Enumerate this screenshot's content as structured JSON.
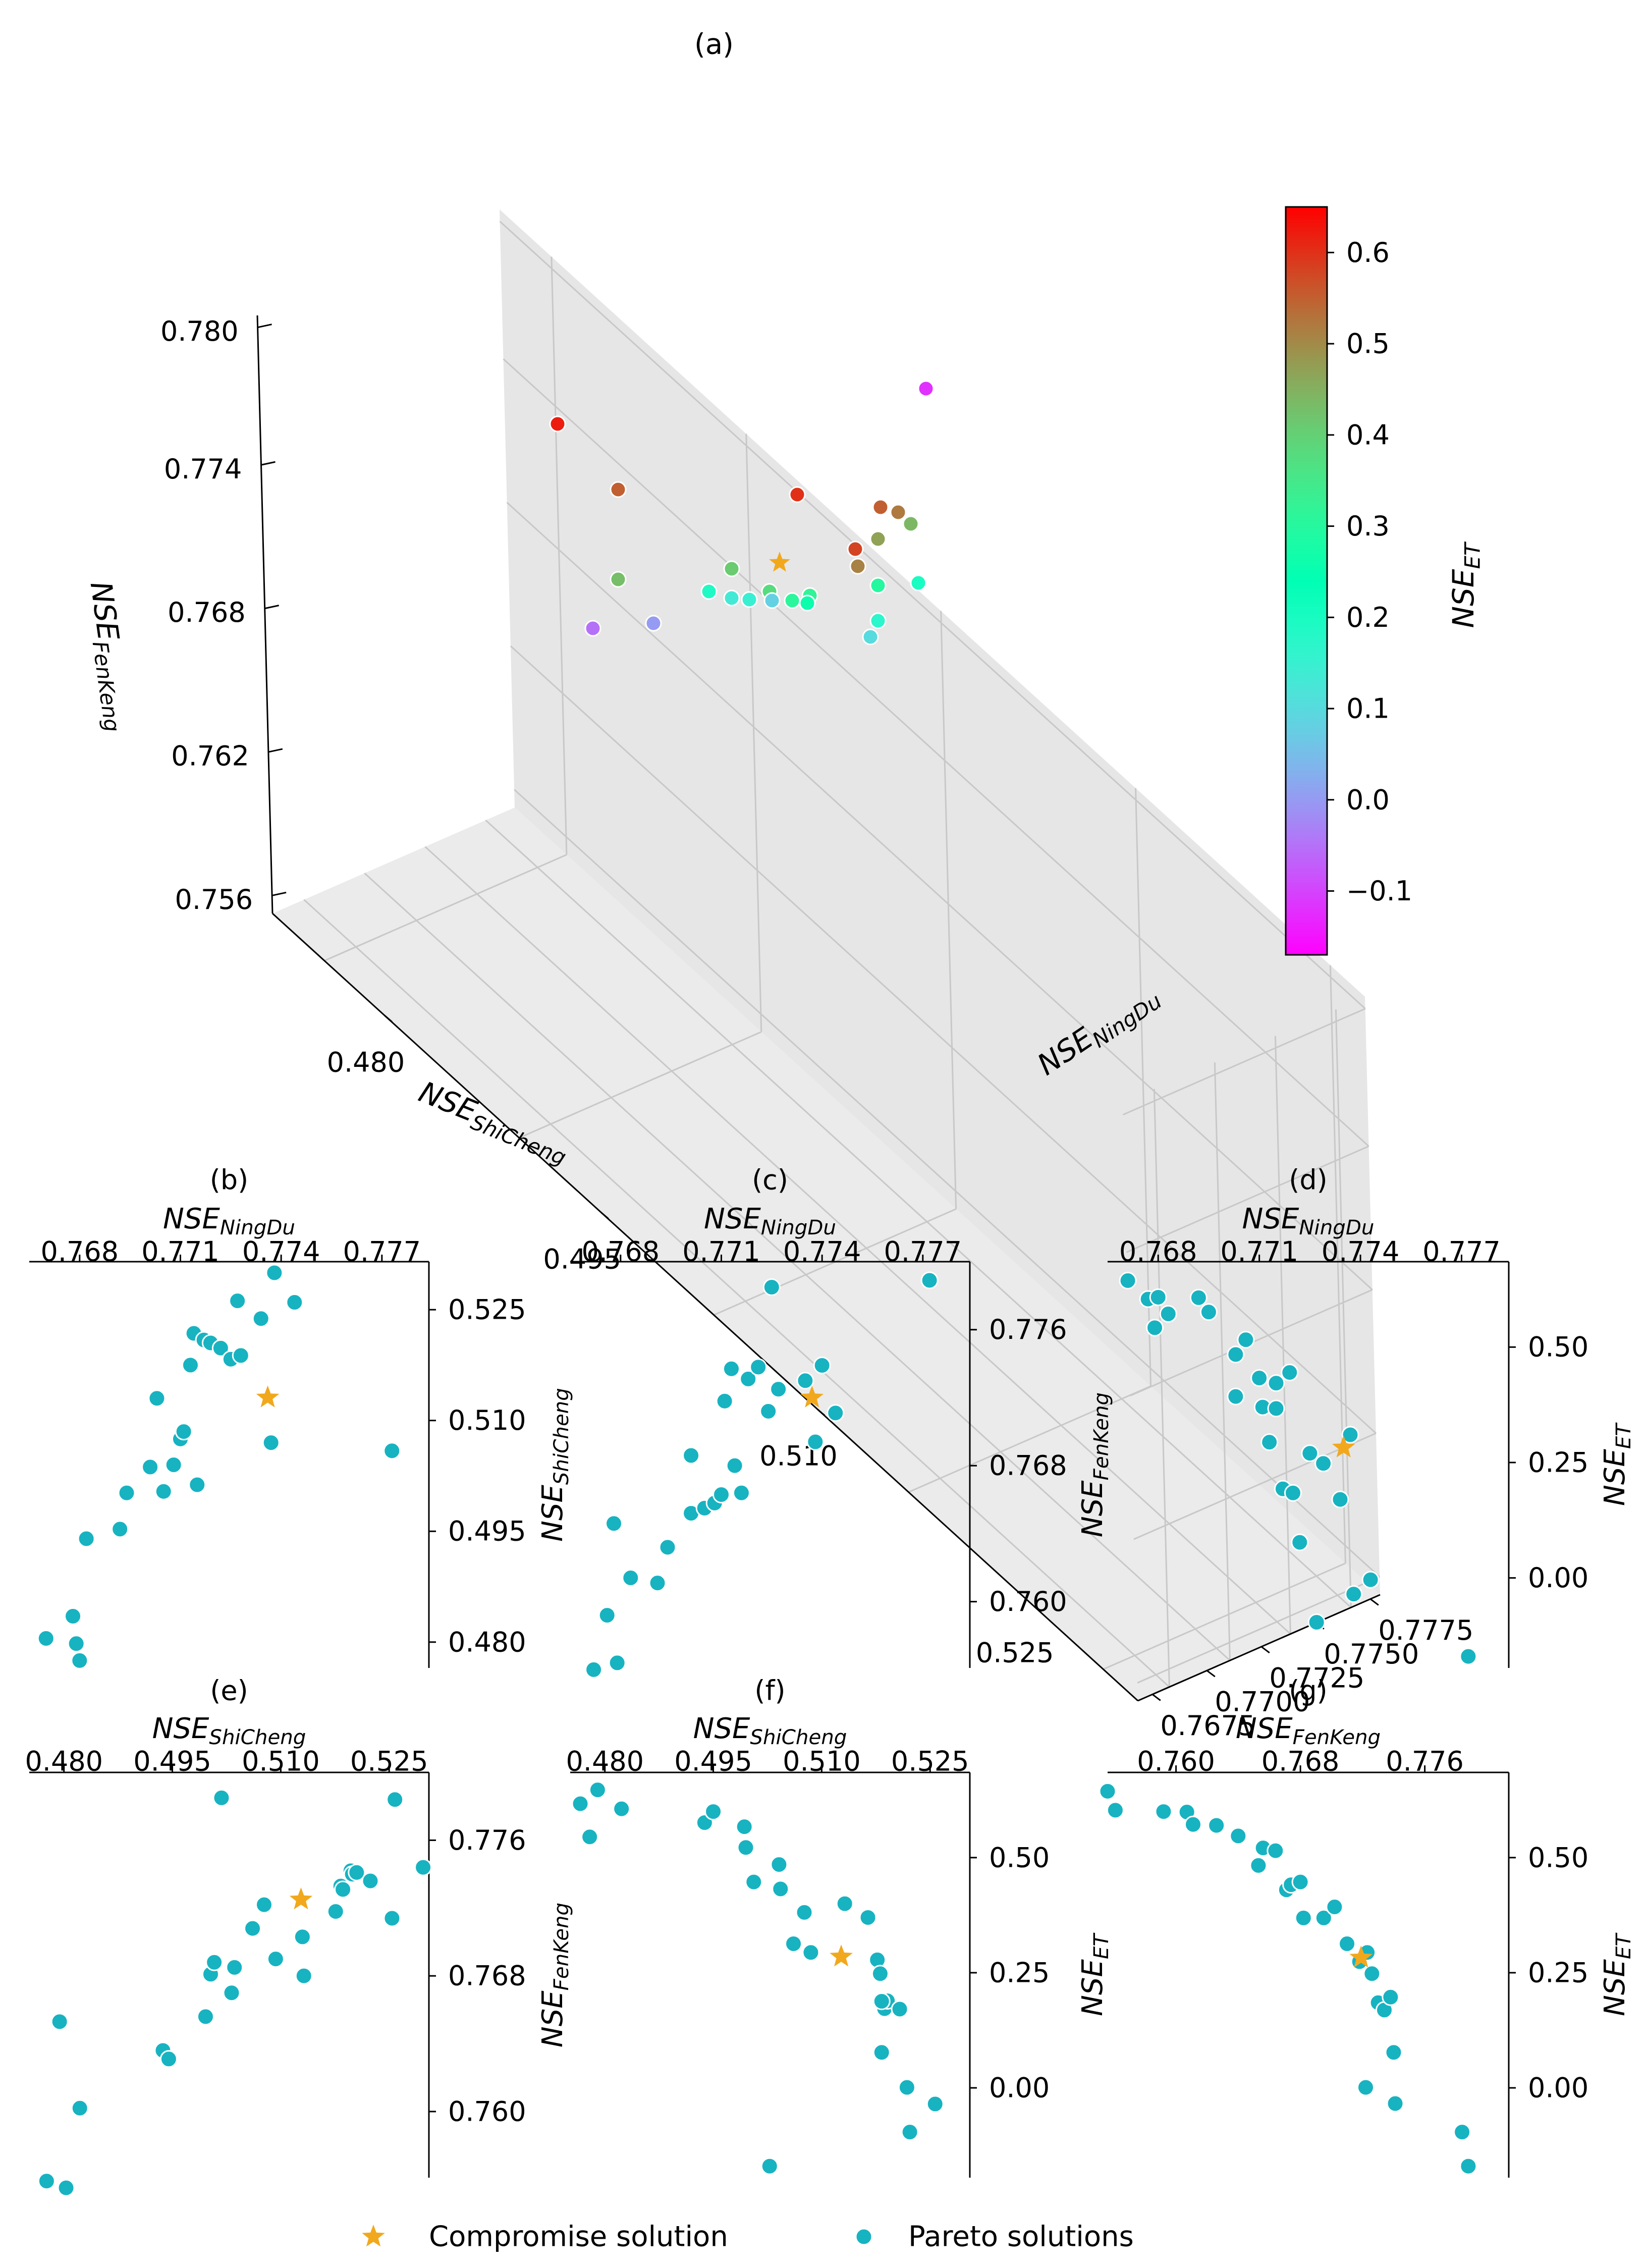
{
  "chart_data": [
    {
      "type": "scatter-3d",
      "title": "(a)",
      "xlabel": "NSE",
      "xlabel_sub": "ShiCheng",
      "ylabel": "NSE",
      "ylabel_sub": "NingDu",
      "zlabel": "NSE",
      "zlabel_sub": "FenKeng",
      "xticks": [
        "0.480",
        "0.495",
        "0.510",
        "0.525"
      ],
      "yticks": [
        "0.7675",
        "0.7700",
        "0.7725",
        "0.7750",
        "0.7775"
      ],
      "zticks": [
        "0.756",
        "0.762",
        "0.768",
        "0.774",
        "0.780"
      ],
      "colorbar": {
        "label": "NSE",
        "label_sub": "ET",
        "range": [
          -0.17,
          0.65
        ],
        "ticks": [
          "0.6",
          "0.5",
          "0.4",
          "0.3",
          "0.2",
          "0.1",
          "0.0",
          "−0.1"
        ],
        "tick_values": [
          0.6,
          0.5,
          0.4,
          0.3,
          0.2,
          0.1,
          0.0,
          -0.1
        ]
      },
      "compromise": {
        "c": 0.28
      },
      "pareto_c": [
        -0.12,
        0.62,
        0.55,
        0.6,
        0.55,
        0.52,
        0.44,
        0.58,
        0.43,
        0.47,
        0.41,
        0.51,
        0.38,
        0.3,
        0.32,
        0.17,
        0.19,
        0.13,
        0.15,
        0.08,
        0.2,
        0.31,
        0.26,
        0.0,
        -0.05,
        0.1
      ]
    },
    {
      "type": "scatter",
      "title": "(b)",
      "xlabel": "NSE",
      "xlabel_sub": "NingDu",
      "ylabel": "NSE",
      "ylabel_sub": "ShiCheng",
      "xlim": [
        0.7665,
        0.7784
      ],
      "ylim": [
        0.4765,
        0.5315
      ],
      "xticks": [
        0.768,
        0.771,
        0.774,
        0.777
      ],
      "xtick_labels": [
        "0.768",
        "0.771",
        "0.774",
        "0.777"
      ],
      "yticks": [
        0.48,
        0.495,
        0.51,
        0.525
      ],
      "ytick_labels": [
        "0.480",
        "0.495",
        "0.510",
        "0.525"
      ],
      "compromise": [
        0.7736,
        0.5131
      ],
      "pareto": [
        [
          0.767,
          0.4805
        ],
        [
          0.7678,
          0.4835
        ],
        [
          0.7679,
          0.4798
        ],
        [
          0.768,
          0.4775
        ],
        [
          0.7682,
          0.494
        ],
        [
          0.7692,
          0.4953
        ],
        [
          0.7694,
          0.5002
        ],
        [
          0.7701,
          0.5037
        ],
        [
          0.7703,
          0.513
        ],
        [
          0.7705,
          0.5004
        ],
        [
          0.7708,
          0.504
        ],
        [
          0.771,
          0.5075
        ],
        [
          0.7711,
          0.5085
        ],
        [
          0.7713,
          0.5175
        ],
        [
          0.7714,
          0.5218
        ],
        [
          0.7715,
          0.5013
        ],
        [
          0.7717,
          0.5209
        ],
        [
          0.7719,
          0.5205
        ],
        [
          0.7722,
          0.5198
        ],
        [
          0.7725,
          0.5183
        ],
        [
          0.7727,
          0.5262
        ],
        [
          0.7728,
          0.5188
        ],
        [
          0.7734,
          0.5238
        ],
        [
          0.7737,
          0.507
        ],
        [
          0.7738,
          0.53
        ],
        [
          0.7744,
          0.526
        ],
        [
          0.7773,
          0.5059
        ]
      ]
    },
    {
      "type": "scatter",
      "title": "(c)",
      "xlabel": "NSE",
      "xlabel_sub": "NingDu",
      "ylabel": "NSE",
      "ylabel_sub": "FenKeng",
      "xlim": [
        0.7665,
        0.7784
      ],
      "ylim": [
        0.7561,
        0.78
      ],
      "xticks": [
        0.768,
        0.771,
        0.774,
        0.777
      ],
      "xtick_labels": [
        "0.768",
        "0.771",
        "0.774",
        "0.777"
      ],
      "yticks": [
        0.76,
        0.768,
        0.776
      ],
      "ytick_labels": [
        "0.760",
        "0.768",
        "0.776"
      ],
      "compromise": [
        0.7737,
        0.772
      ],
      "pareto": [
        [
          0.7672,
          0.756
        ],
        [
          0.7676,
          0.7592
        ],
        [
          0.7678,
          0.7646
        ],
        [
          0.7679,
          0.7564
        ],
        [
          0.7683,
          0.7614
        ],
        [
          0.7691,
          0.7611
        ],
        [
          0.7694,
          0.7632
        ],
        [
          0.7701,
          0.7652
        ],
        [
          0.7701,
          0.7686
        ],
        [
          0.7705,
          0.7655
        ],
        [
          0.7708,
          0.7658
        ],
        [
          0.771,
          0.7663
        ],
        [
          0.7711,
          0.7718
        ],
        [
          0.7713,
          0.7737
        ],
        [
          0.7714,
          0.768
        ],
        [
          0.7716,
          0.7664
        ],
        [
          0.7718,
          0.7731
        ],
        [
          0.7721,
          0.7738
        ],
        [
          0.7724,
          0.7712
        ],
        [
          0.7725,
          0.7785
        ],
        [
          0.7727,
          0.7725
        ],
        [
          0.7735,
          0.773
        ],
        [
          0.7738,
          0.7694
        ],
        [
          0.774,
          0.7739
        ],
        [
          0.7744,
          0.7711
        ],
        [
          0.7772,
          0.7789
        ]
      ]
    },
    {
      "type": "scatter",
      "title": "(d)",
      "xlabel": "NSE",
      "xlabel_sub": "NingDu",
      "ylabel": "NSE",
      "ylabel_sub": "ET",
      "xlim": [
        0.7665,
        0.7784
      ],
      "ylim": [
        -0.195,
        0.685
      ],
      "xticks": [
        0.768,
        0.771,
        0.774,
        0.777
      ],
      "xtick_labels": [
        "0.768",
        "0.771",
        "0.774",
        "0.777"
      ],
      "yticks": [
        0.0,
        0.25,
        0.5
      ],
      "ytick_labels": [
        "0.00",
        "0.25",
        "0.50"
      ],
      "compromise": [
        0.7735,
        0.2823
      ],
      "pareto": [
        [
          0.7671,
          0.644
        ],
        [
          0.7677,
          0.604
        ],
        [
          0.7679,
          0.542
        ],
        [
          0.768,
          0.608
        ],
        [
          0.7683,
          0.572
        ],
        [
          0.7692,
          0.607
        ],
        [
          0.7695,
          0.576
        ],
        [
          0.7703,
          0.484
        ],
        [
          0.7703,
          0.393
        ],
        [
          0.7706,
          0.516
        ],
        [
          0.771,
          0.433
        ],
        [
          0.7711,
          0.37
        ],
        [
          0.7713,
          0.294
        ],
        [
          0.7715,
          0.422
        ],
        [
          0.7715,
          0.367
        ],
        [
          0.7717,
          0.193
        ],
        [
          0.7719,
          0.445
        ],
        [
          0.772,
          0.184
        ],
        [
          0.7722,
          0.077
        ],
        [
          0.7725,
          0.27
        ],
        [
          0.7727,
          -0.096
        ],
        [
          0.7729,
          0.248
        ],
        [
          0.7734,
          0.17
        ],
        [
          0.7737,
          0.31
        ],
        [
          0.7738,
          -0.035
        ],
        [
          0.7743,
          -0.004
        ],
        [
          0.7772,
          -0.17
        ]
      ]
    },
    {
      "type": "scatter",
      "title": "(e)",
      "xlabel": "NSE",
      "xlabel_sub": "ShiCheng",
      "ylabel": "NSE",
      "ylabel_sub": "FenKeng",
      "xlim": [
        0.4752,
        0.5305
      ],
      "ylim": [
        0.7561,
        0.78
      ],
      "xticks": [
        0.48,
        0.495,
        0.51,
        0.525
      ],
      "xtick_labels": [
        "0.480",
        "0.495",
        "0.510",
        "0.525"
      ],
      "yticks": [
        0.76,
        0.768,
        0.776
      ],
      "ytick_labels": [
        "0.760",
        "0.768",
        "0.776"
      ],
      "compromise": [
        0.5128,
        0.7725
      ],
      "pareto": [
        [
          0.4776,
          0.7559
        ],
        [
          0.4794,
          0.7653
        ],
        [
          0.4803,
          0.7555
        ],
        [
          0.4822,
          0.7602
        ],
        [
          0.4937,
          0.7636
        ],
        [
          0.4945,
          0.7631
        ],
        [
          0.4996,
          0.7656
        ],
        [
          0.5003,
          0.7681
        ],
        [
          0.5008,
          0.7688
        ],
        [
          0.5018,
          0.7785
        ],
        [
          0.5032,
          0.767
        ],
        [
          0.5036,
          0.7685
        ],
        [
          0.5061,
          0.7708
        ],
        [
          0.5077,
          0.7722
        ],
        [
          0.5093,
          0.769
        ],
        [
          0.5132,
          0.768
        ],
        [
          0.513,
          0.7703
        ],
        [
          0.5176,
          0.7718
        ],
        [
          0.5183,
          0.7733
        ],
        [
          0.5186,
          0.7731
        ],
        [
          0.5197,
          0.7742
        ],
        [
          0.5199,
          0.774
        ],
        [
          0.5205,
          0.7741
        ],
        [
          0.5224,
          0.7736
        ],
        [
          0.5254,
          0.7714
        ],
        [
          0.5258,
          0.7784
        ],
        [
          0.5297,
          0.7744
        ]
      ]
    },
    {
      "type": "scatter",
      "title": "(f)",
      "xlabel": "NSE",
      "xlabel_sub": "ShiCheng",
      "ylabel": "NSE",
      "ylabel_sub": "ET",
      "xlim": [
        0.4752,
        0.5305
      ],
      "ylim": [
        -0.195,
        0.685
      ],
      "xticks": [
        0.48,
        0.495,
        0.51,
        0.525
      ],
      "xtick_labels": [
        "0.480",
        "0.495",
        "0.510",
        "0.525"
      ],
      "yticks": [
        0.0,
        0.25,
        0.5
      ],
      "ytick_labels": [
        "0.00",
        "0.25",
        "0.50"
      ],
      "compromise": [
        0.5127,
        0.2849
      ],
      "pareto": [
        [
          0.4766,
          0.617
        ],
        [
          0.479,
          0.647
        ],
        [
          0.4779,
          0.545
        ],
        [
          0.4823,
          0.606
        ],
        [
          0.4938,
          0.576
        ],
        [
          0.495,
          0.6
        ],
        [
          0.4993,
          0.567
        ],
        [
          0.4995,
          0.522
        ],
        [
          0.5006,
          0.447
        ],
        [
          0.5041,
          0.485
        ],
        [
          0.5043,
          0.432
        ],
        [
          0.5061,
          0.313
        ],
        [
          0.5076,
          0.381
        ],
        [
          0.5085,
          0.294
        ],
        [
          0.5028,
          -0.17
        ],
        [
          0.5132,
          0.4
        ],
        [
          0.5164,
          0.37
        ],
        [
          0.5177,
          0.278
        ],
        [
          0.5181,
          0.248
        ],
        [
          0.5187,
          0.172
        ],
        [
          0.5191,
          0.189
        ],
        [
          0.5183,
          0.077
        ],
        [
          0.5208,
          0.171
        ],
        [
          0.5218,
          0.001
        ],
        [
          0.5222,
          -0.096
        ],
        [
          0.5257,
          -0.035
        ],
        [
          0.5183,
          0.188
        ]
      ]
    },
    {
      "type": "scatter",
      "title": "(g)",
      "xlabel": "NSE",
      "xlabel_sub": "FenKeng",
      "ylabel": "NSE",
      "ylabel_sub": "ET",
      "xlim": [
        0.7556,
        0.7814
      ],
      "ylim": [
        -0.195,
        0.685
      ],
      "xticks": [
        0.76,
        0.768,
        0.776
      ],
      "xtick_labels": [
        "0.760",
        "0.768",
        "0.776"
      ],
      "yticks": [
        0.0,
        0.25,
        0.5
      ],
      "ytick_labels": [
        "0.00",
        "0.25",
        "0.50"
      ],
      "compromise": [
        0.7719,
        0.2826
      ],
      "pareto": [
        [
          0.7556,
          0.644
        ],
        [
          0.7561,
          0.603
        ],
        [
          0.7592,
          0.6
        ],
        [
          0.7607,
          0.599
        ],
        [
          0.7611,
          0.572
        ],
        [
          0.7626,
          0.57
        ],
        [
          0.764,
          0.547
        ],
        [
          0.7653,
          0.483
        ],
        [
          0.7656,
          0.521
        ],
        [
          0.7664,
          0.515
        ],
        [
          0.7671,
          0.43
        ],
        [
          0.7674,
          0.441
        ],
        [
          0.768,
          0.447
        ],
        [
          0.7682,
          0.369
        ],
        [
          0.7695,
          0.369
        ],
        [
          0.7702,
          0.393
        ],
        [
          0.771,
          0.313
        ],
        [
          0.7718,
          0.274
        ],
        [
          0.7723,
          0.294
        ],
        [
          0.7726,
          0.248
        ],
        [
          0.773,
          0.185
        ],
        [
          0.7734,
          0.169
        ],
        [
          0.7738,
          0.197
        ],
        [
          0.774,
          0.077
        ],
        [
          0.7741,
          -0.034
        ],
        [
          0.7784,
          -0.096
        ],
        [
          0.7788,
          -0.17
        ],
        [
          0.7722,
          0.001
        ]
      ]
    }
  ],
  "legend": {
    "compromise_label": "Compromise solution",
    "pareto_label": "Pareto solutions"
  },
  "colors": {
    "compromise": "#f2a81c",
    "pareto": "#17b3c1",
    "grid": "#c8c8c8",
    "pane": "#f2f2f2"
  }
}
